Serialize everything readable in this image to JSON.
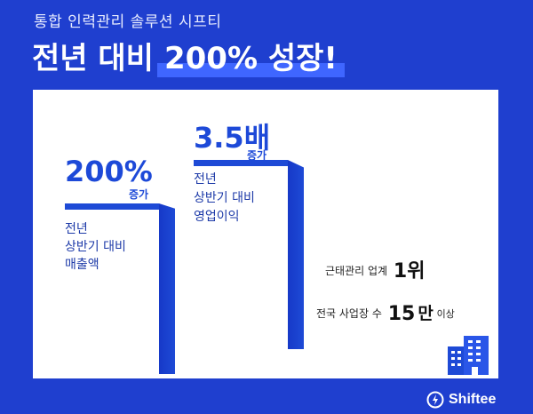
{
  "header": {
    "subtitle": "통합 인력관리 솔루션 시프티",
    "headline_prefix": "전년 대비",
    "headline_highlight": "200% 성장!"
  },
  "stat_left": {
    "value": "200%",
    "increase_label": "증가",
    "desc_lines": [
      "전년",
      "상반기 대비",
      "매출액"
    ]
  },
  "stat_right": {
    "value": "3.5배",
    "increase_label": "증가",
    "desc_lines": [
      "전년",
      "상반기 대비",
      "영업이익"
    ]
  },
  "rank": {
    "prefix": "근태관리 업계",
    "value": "1위"
  },
  "sites": {
    "prefix": "전국 사업장 수",
    "value": "15",
    "unit": "만",
    "suffix": "이상"
  },
  "brand": {
    "name": "Shiftee"
  },
  "colors": {
    "background": "#1f3fcf",
    "accent": "#1e4ad6",
    "highlight": "#3f66ff"
  },
  "icons": [
    "building-icon",
    "shiftee-logo-icon"
  ]
}
